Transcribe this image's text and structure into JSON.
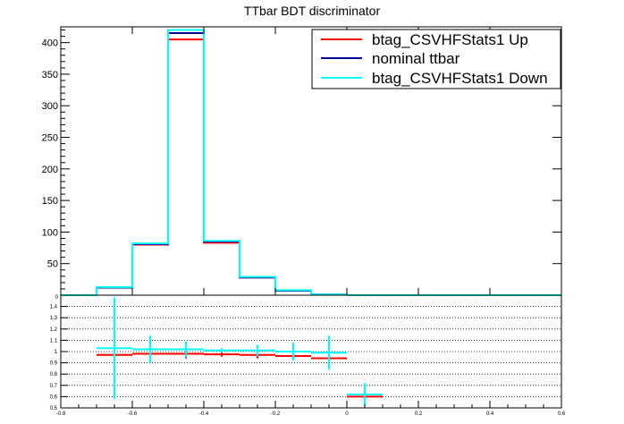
{
  "chart_data": [
    {
      "type": "histogram-step",
      "title": "TTbar BDT discriminator",
      "xlim": [
        -0.8,
        0.6
      ],
      "ylim": [
        0,
        425
      ],
      "bin_edges": [
        -0.8,
        -0.7,
        -0.6,
        -0.5,
        -0.4,
        -0.3,
        -0.2,
        -0.1,
        0.0,
        0.1,
        0.2,
        0.3,
        0.4,
        0.5,
        0.6
      ],
      "yticks": [
        0,
        50,
        100,
        150,
        200,
        250,
        300,
        350,
        400
      ],
      "ytick_labels": [
        "0",
        "50",
        "100",
        "150",
        "200",
        "250",
        "300",
        "350",
        "400"
      ],
      "series": [
        {
          "name": "btag_CSVHFStats1 Up",
          "color": "#ff0000",
          "values": [
            0,
            12,
            80,
            405,
            83,
            28,
            7,
            1,
            0,
            0,
            0,
            0,
            0,
            0
          ]
        },
        {
          "name": "nominal ttbar",
          "color": "#000099",
          "values": [
            0,
            12,
            81,
            415,
            85,
            28,
            7,
            1,
            0,
            0,
            0,
            0,
            0,
            0
          ]
        },
        {
          "name": "btag_CSVHFStats1 Down",
          "color": "#00ffff",
          "values": [
            0,
            13,
            82,
            420,
            86,
            29,
            8,
            1,
            0,
            0,
            0,
            0,
            0,
            0
          ]
        }
      ],
      "legend": {
        "placement": "top-right"
      }
    },
    {
      "type": "ratio",
      "xlim": [
        -0.8,
        0.6
      ],
      "ylim": [
        0.5,
        1.5
      ],
      "xticks": [
        -0.8,
        -0.6,
        -0.4,
        -0.2,
        0,
        0.2,
        0.4,
        0.6
      ],
      "xtick_labels": [
        "-0.8",
        "-0.6",
        "-0.4",
        "-0.2",
        "0",
        "0.2",
        "0.4",
        "0.6"
      ],
      "yticks": [
        0.5,
        0.6,
        0.7,
        0.8,
        0.9,
        1.0,
        1.1,
        1.2,
        1.3,
        1.4
      ],
      "ytick_labels": [
        "0.5",
        "0.6",
        "0.7",
        "0.8",
        "0.9",
        "1",
        "1.1",
        "1.2",
        "1.3",
        "1.4"
      ],
      "grid": true,
      "series": [
        {
          "name": "btag_CSVHFStats1 Up",
          "color": "#ff0000",
          "x": [
            -0.65,
            -0.55,
            -0.45,
            -0.35,
            -0.25,
            -0.15,
            -0.05,
            0.05
          ],
          "y": [
            0.97,
            0.98,
            0.98,
            0.975,
            0.97,
            0.96,
            0.94,
            0.6
          ],
          "yerr": [
            0.0,
            0.04,
            0.04,
            0.02,
            0.03,
            0.04,
            0.1,
            0.0
          ]
        },
        {
          "name": "btag_CSVHFStats1 Down",
          "color": "#00ffff",
          "x": [
            -0.65,
            -0.55,
            -0.45,
            -0.35,
            -0.25,
            -0.15,
            -0.05,
            0.05
          ],
          "y": [
            1.03,
            1.02,
            1.02,
            1.01,
            1.01,
            1.0,
            0.99,
            0.62
          ],
          "yerr": [
            0.45,
            0.12,
            0.07,
            0.02,
            0.05,
            0.08,
            0.15,
            0.1
          ]
        }
      ]
    }
  ]
}
